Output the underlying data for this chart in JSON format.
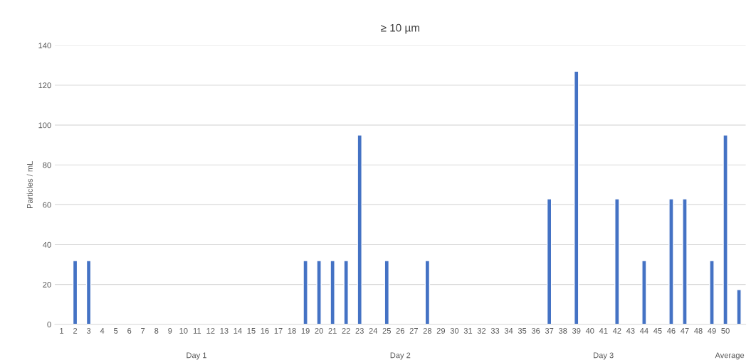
{
  "chart_data": {
    "type": "bar",
    "title": "≥ 10 µm",
    "ylabel": "Particles / mL",
    "categories": [
      "1",
      "2",
      "3",
      "4",
      "5",
      "6",
      "7",
      "8",
      "9",
      "10",
      "11",
      "12",
      "13",
      "14",
      "15",
      "16",
      "17",
      "18",
      "19",
      "20",
      "21",
      "22",
      "23",
      "24",
      "25",
      "26",
      "27",
      "28",
      "29",
      "30",
      "31",
      "32",
      "33",
      "34",
      "35",
      "36",
      "37",
      "38",
      "39",
      "40",
      "41",
      "42",
      "43",
      "44",
      "45",
      "46",
      "47",
      "48",
      "49",
      "50",
      null
    ],
    "values": [
      null,
      32,
      32,
      null,
      null,
      null,
      null,
      null,
      null,
      null,
      null,
      null,
      null,
      null,
      null,
      null,
      null,
      null,
      32,
      32,
      32,
      32,
      95,
      null,
      32,
      null,
      null,
      32,
      null,
      null,
      null,
      null,
      null,
      null,
      null,
      null,
      63,
      null,
      127,
      null,
      null,
      63,
      null,
      32,
      null,
      63,
      63,
      null,
      32,
      95,
      17.5
    ],
    "color": "#4472c4",
    "ylim": [
      0,
      140
    ],
    "yticks": [
      0,
      20,
      40,
      60,
      80,
      100,
      120,
      140
    ],
    "grid": "y",
    "legend": false,
    "annotations": [
      "Day 1",
      "Day 2",
      "Day 3",
      "Average"
    ]
  }
}
